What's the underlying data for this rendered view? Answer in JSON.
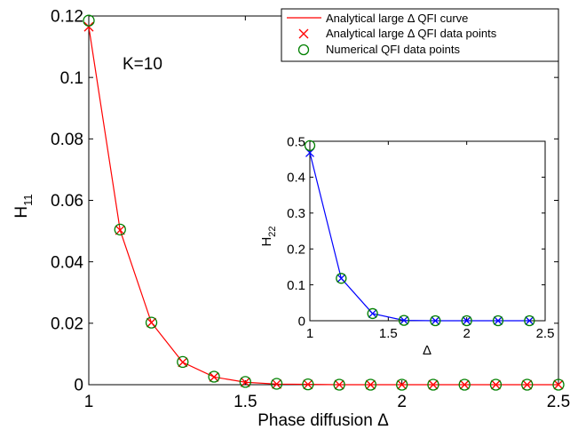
{
  "chart_data": [
    {
      "type": "line",
      "xlabel": "Phase diffusion Δ",
      "ylabel": "H",
      "ylabel_sub": "11",
      "xlim": [
        1,
        2.5
      ],
      "ylim": [
        0,
        0.12
      ],
      "xticks": [
        1,
        1.5,
        2,
        2.5
      ],
      "xtick_labels": [
        "1",
        "1.5",
        "2",
        "2.5"
      ],
      "yticks": [
        0,
        0.02,
        0.04,
        0.06,
        0.08,
        0.1,
        0.12
      ],
      "ytick_labels": [
        "0",
        "0.02",
        "0.04",
        "0.06",
        "0.08",
        "0.1",
        "0.12"
      ],
      "annotation": "K=10",
      "legend_position": "top-right",
      "x": [
        1.0,
        1.1,
        1.2,
        1.3,
        1.4,
        1.5,
        1.6,
        1.7,
        1.8,
        1.9,
        2.0,
        2.1,
        2.2,
        2.3,
        2.4,
        2.5
      ],
      "series": [
        {
          "name": "Analytical large Δ QFI curve",
          "marker": "line",
          "color": "#ff0000",
          "values": [
            0.1165,
            0.0503,
            0.0202,
            0.0073,
            0.0025,
            0.0008,
            0.0002,
            0.0001,
            0.0,
            0.0,
            0.0,
            0.0,
            0.0,
            0.0,
            0.0,
            0.0
          ]
        },
        {
          "name": "Analytical large Δ QFI data points",
          "marker": "x",
          "color": "#ff0000",
          "values": [
            0.1165,
            0.0503,
            0.0202,
            0.0073,
            0.0025,
            0.0008,
            0.0002,
            0.0001,
            0.0,
            0.0,
            0.0,
            0.0,
            0.0,
            0.0,
            0.0,
            0.0
          ]
        },
        {
          "name": "Numerical QFI data points",
          "marker": "circle",
          "color": "#008000",
          "values": [
            0.1185,
            0.0505,
            0.0202,
            0.0074,
            0.0026,
            0.0009,
            0.0003,
            0.0001,
            0.0,
            0.0,
            0.0,
            0.0,
            0.0,
            0.0,
            0.0,
            0.0
          ]
        }
      ]
    },
    {
      "type": "line",
      "inset": true,
      "xlabel": "Δ",
      "ylabel": "H",
      "ylabel_sub": "22",
      "xlim": [
        1,
        2.5
      ],
      "ylim": [
        0,
        0.5
      ],
      "xticks": [
        1,
        1.5,
        2,
        2.5
      ],
      "xtick_labels": [
        "1",
        "1.5",
        "2",
        "2.5"
      ],
      "yticks": [
        0,
        0.1,
        0.2,
        0.3,
        0.4,
        0.5
      ],
      "ytick_labels": [
        "0",
        "0.1",
        "0.2",
        "0.3",
        "0.4",
        "0.5"
      ],
      "x": [
        1.0,
        1.2,
        1.4,
        1.6,
        1.8,
        2.0,
        2.2,
        2.4
      ],
      "series": [
        {
          "marker": "line-x",
          "color": "#0000ff",
          "values": [
            0.468,
            0.118,
            0.02,
            0.001,
            0.0,
            0.0,
            0.0,
            0.0
          ]
        },
        {
          "marker": "circle",
          "color": "#008000",
          "values": [
            0.488,
            0.118,
            0.02,
            0.001,
            0.0,
            0.0,
            0.0,
            0.0
          ]
        }
      ]
    }
  ]
}
